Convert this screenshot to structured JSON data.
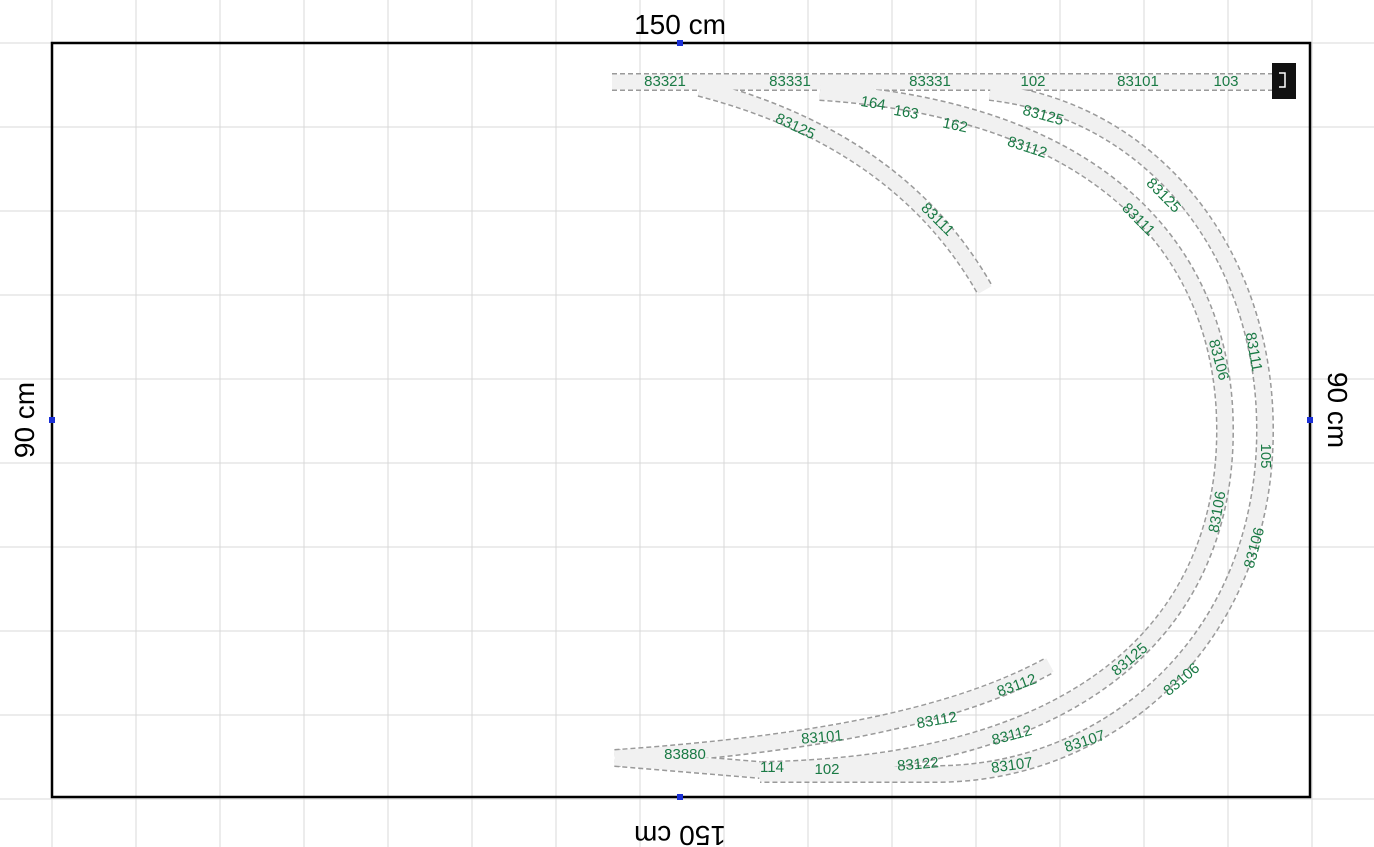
{
  "dimensions": {
    "top": "150 cm",
    "bottom": "150 cm",
    "left": "90 cm",
    "right": "90 cm"
  },
  "track_labels": [
    "83321",
    "83331",
    "83331",
    "102",
    "83101",
    "103",
    "164",
    "163",
    "162",
    "83112",
    "83125",
    "83125",
    "83111",
    "83125",
    "83111",
    "83106",
    "83111",
    "105",
    "83106",
    "83106",
    "83125",
    "83106",
    "83112",
    "83112",
    "83101",
    "83880",
    "114",
    "102",
    "83122",
    "83112",
    "83107",
    "83107"
  ]
}
